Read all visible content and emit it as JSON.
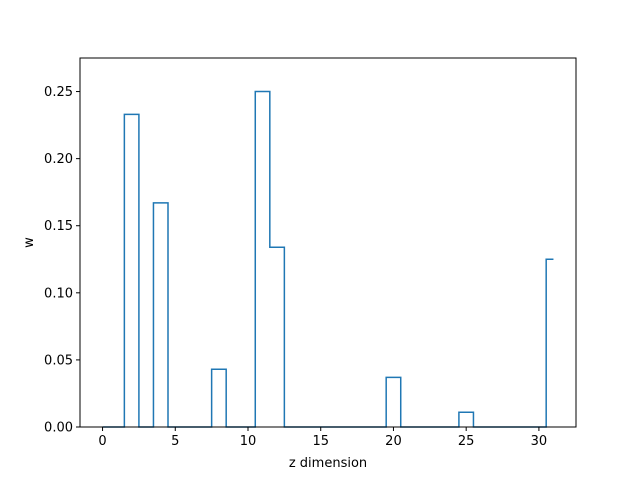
{
  "chart_data": {
    "type": "line",
    "drawstyle": "steps-mid",
    "xlabel": "z dimension",
    "ylabel": "w",
    "xlim": [
      -1.55,
      32.55
    ],
    "ylim": [
      0,
      0.275
    ],
    "xticks": [
      0,
      5,
      10,
      15,
      20,
      25,
      30
    ],
    "yticks": [
      0.0,
      0.05,
      0.1,
      0.15,
      0.2,
      0.25
    ],
    "xtick_labels": [
      "0",
      "5",
      "10",
      "15",
      "20",
      "25",
      "30"
    ],
    "ytick_labels": [
      "0.00",
      "0.05",
      "0.10",
      "0.15",
      "0.20",
      "0.25"
    ],
    "grid": false,
    "series": [
      {
        "color": "#1f77b4",
        "x": [
          0,
          1,
          2,
          3,
          4,
          5,
          6,
          7,
          8,
          9,
          10,
          11,
          12,
          13,
          14,
          15,
          16,
          17,
          18,
          19,
          20,
          21,
          22,
          23,
          24,
          25,
          26,
          27,
          28,
          29,
          30,
          31
        ],
        "y": [
          0,
          0,
          0.233,
          0,
          0.167,
          0,
          0,
          0,
          0.043,
          0,
          0,
          0.25,
          0.134,
          0,
          0,
          0,
          0,
          0,
          0,
          0,
          0.037,
          0,
          0,
          0,
          0,
          0.011,
          0,
          0,
          0,
          0,
          0,
          0.125
        ]
      }
    ]
  }
}
